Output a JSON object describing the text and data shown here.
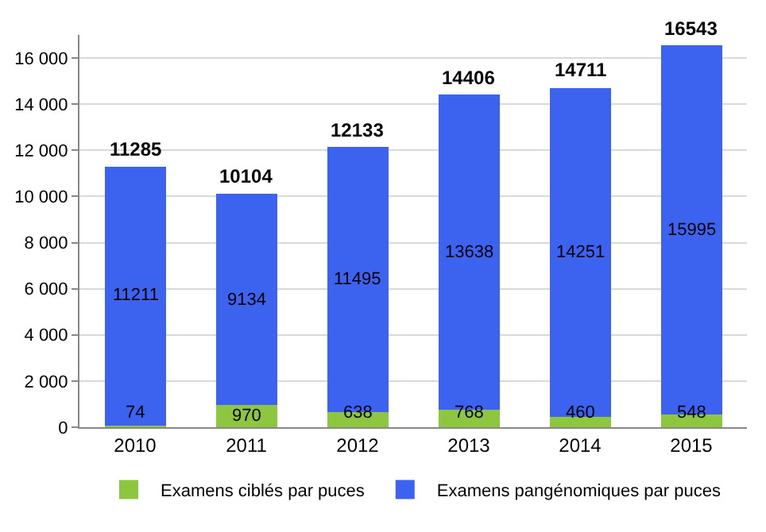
{
  "chart_data": {
    "type": "bar",
    "stacked": true,
    "categories": [
      "2010",
      "2011",
      "2012",
      "2013",
      "2014",
      "2015"
    ],
    "series": [
      {
        "name": "Examens ciblés par puces",
        "color": "#8dc63f",
        "values": [
          74,
          970,
          638,
          768,
          460,
          548
        ]
      },
      {
        "name": "Examens pangénomiques par puces",
        "color": "#3c62f0",
        "values": [
          11211,
          9134,
          11495,
          13638,
          14251,
          15995
        ]
      }
    ],
    "data_labels": true,
    "totals": [
      "11285",
      "10104",
      "12133",
      "14406",
      "14711",
      "16543"
    ],
    "ylim": [
      0,
      17000
    ],
    "yticks": [
      0,
      {
        "value": 2000,
        "label": "2 000"
      },
      {
        "value": 4000,
        "label": "4 000"
      },
      {
        "value": 6000,
        "label": "6 000"
      },
      {
        "value": 8000,
        "label": "8 000"
      },
      {
        "value": 10000,
        "label": "10 000"
      },
      {
        "value": 12000,
        "label": "12 000"
      },
      {
        "value": 14000,
        "label": "14 000"
      },
      {
        "value": 16000,
        "label": "16 000"
      }
    ],
    "grid": "y",
    "legend": "bottom"
  }
}
